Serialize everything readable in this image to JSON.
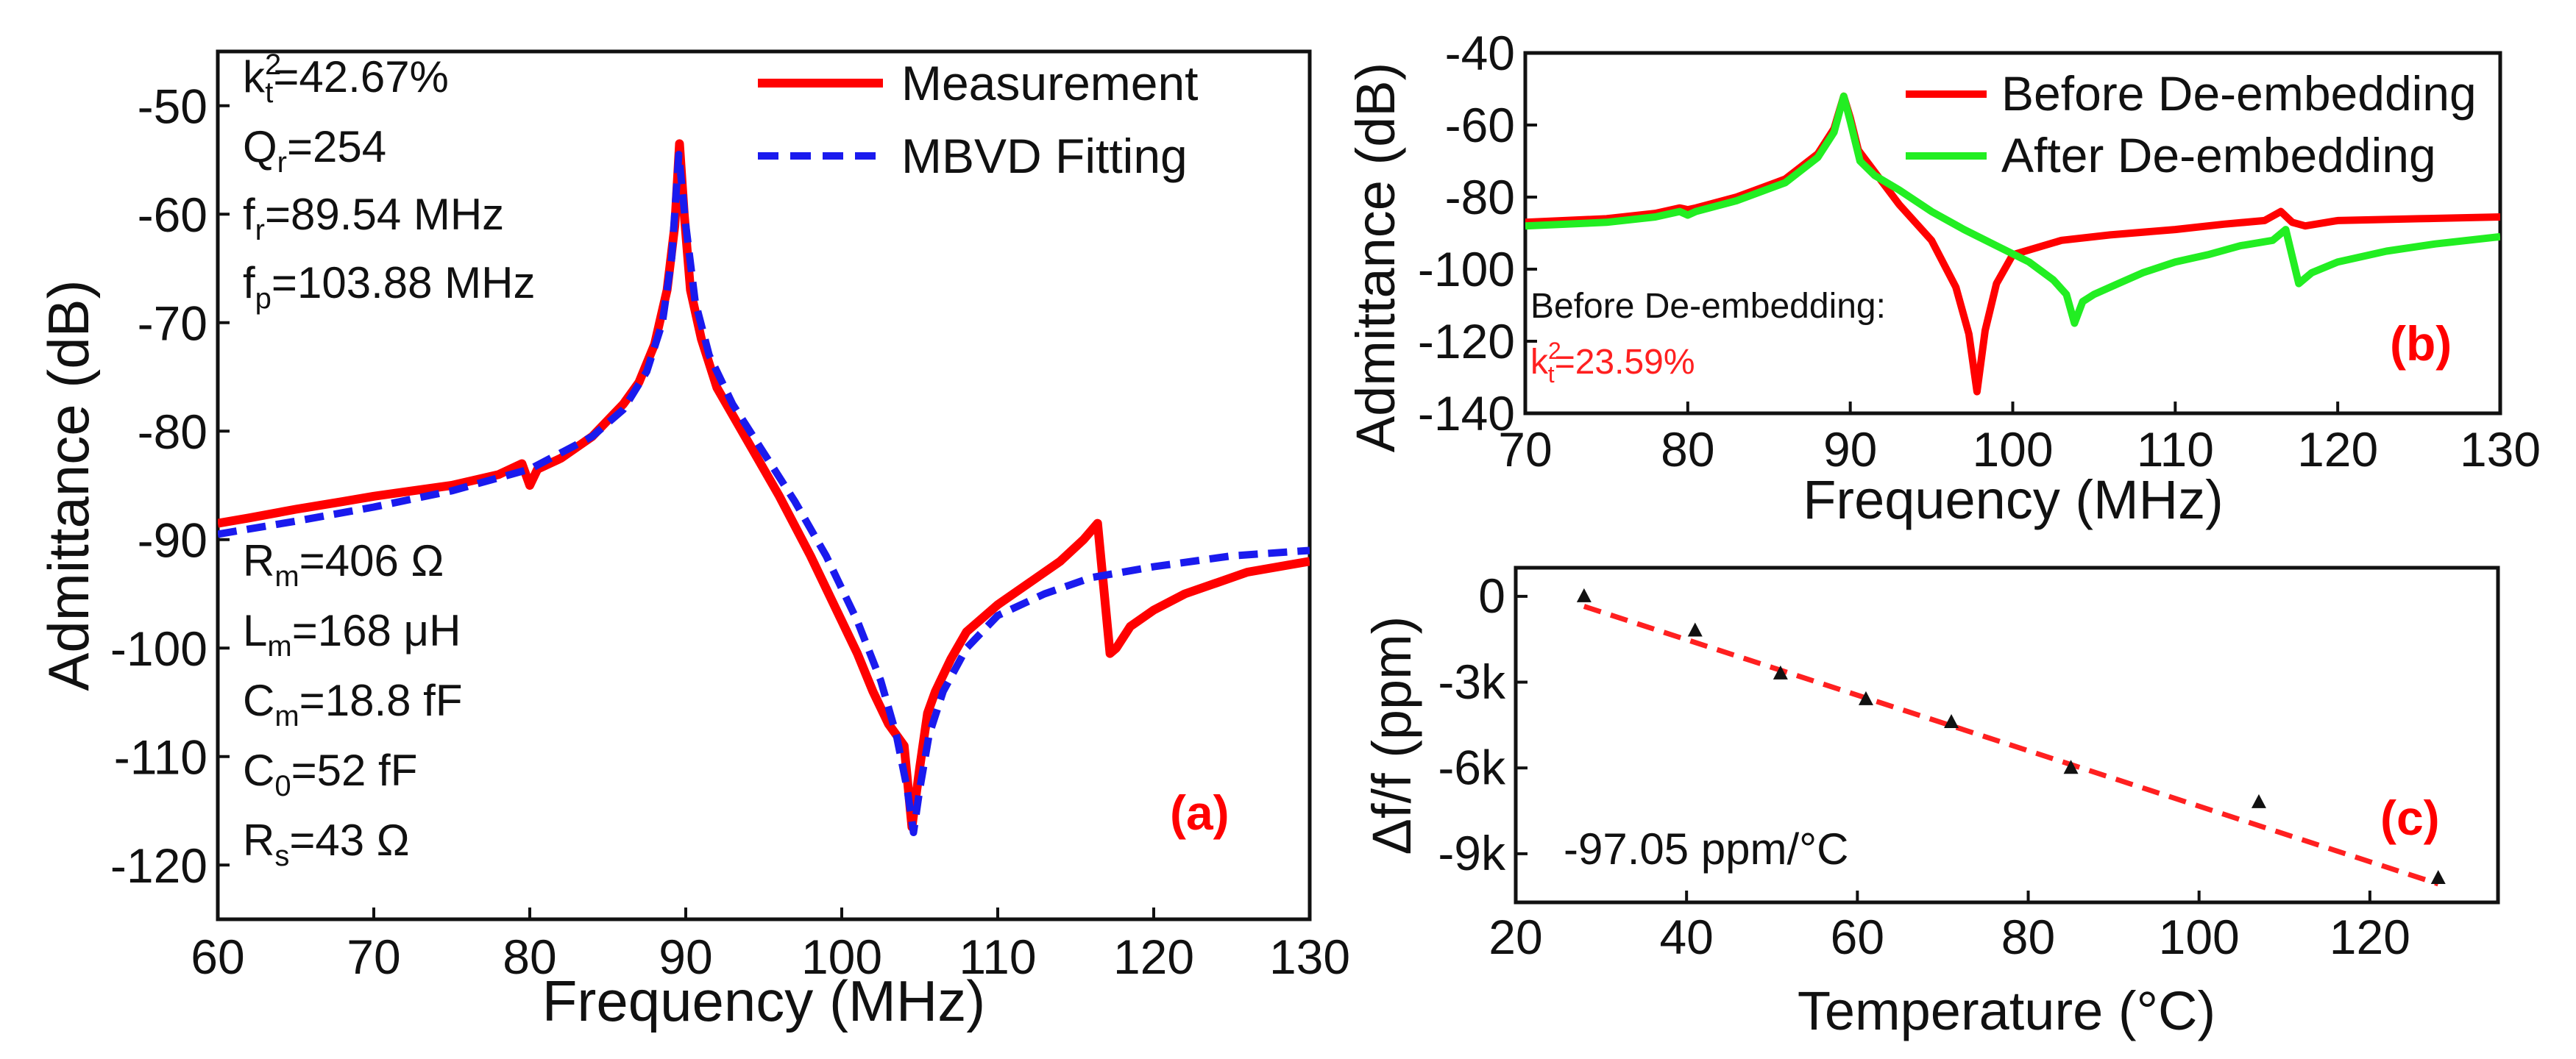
{
  "chart_data": [
    {
      "id": "a",
      "type": "line",
      "panel_label": "(a)",
      "xlabel": "Frequency (MHz)",
      "ylabel": "Admittance (dB)",
      "xlim": [
        60,
        130
      ],
      "ylim": [
        -125,
        -45
      ],
      "xticks": [
        60,
        70,
        80,
        90,
        100,
        110,
        120,
        130
      ],
      "yticks": [
        -120,
        -110,
        -100,
        -90,
        -80,
        -70,
        -60,
        -50
      ],
      "legend_position": "top-right",
      "annotations_top": [
        {
          "main": "k",
          "sub": "t",
          "sup": "2",
          "rest": "=42.67%"
        },
        {
          "main": "Q",
          "sub": "r",
          "rest": "=254"
        },
        {
          "main": "f",
          "sub": "r",
          "rest": "=89.54 MHz"
        },
        {
          "main": "f",
          "sub": "p",
          "rest": "=103.88 MHz"
        }
      ],
      "annotations_bottom": [
        {
          "main": "R",
          "sub": "m",
          "rest": "=406 Ω"
        },
        {
          "main": "L",
          "sub": "m",
          "rest": "=168  μH"
        },
        {
          "main": "C",
          "sub": "m",
          "rest": "=18.8 fF"
        },
        {
          "main": "C",
          "sub": "0",
          "rest": "=52 fF"
        },
        {
          "main": "R",
          "sub": "s",
          "rest": "=43 Ω"
        }
      ],
      "series": [
        {
          "name": "Measurement",
          "color": "#ff0000",
          "style": "solid",
          "x": [
            60,
            62,
            65,
            68,
            70,
            72,
            75,
            78,
            79.5,
            80,
            80.5,
            82,
            84,
            86,
            87,
            88,
            88.8,
            89.3,
            89.6,
            89.9,
            90.3,
            91,
            92,
            94,
            96,
            98,
            100,
            101,
            102,
            103,
            103.5,
            104,
            104.5,
            105,
            105.5,
            106,
            107,
            108,
            110,
            112,
            114,
            115.5,
            116.4,
            117.2,
            117.6,
            118.5,
            120,
            122,
            124,
            126,
            128,
            130
          ],
          "y": [
            -88.5,
            -88,
            -87.2,
            -86.5,
            -86,
            -85.6,
            -85,
            -84,
            -83,
            -85,
            -83.5,
            -82.5,
            -80.5,
            -77.5,
            -75.5,
            -72,
            -67,
            -61,
            -53.5,
            -60,
            -67,
            -71.5,
            -76,
            -81,
            -86,
            -91.5,
            -97.5,
            -100.5,
            -104,
            -107,
            -108,
            -109,
            -116.5,
            -111,
            -106,
            -104,
            -101,
            -98.5,
            -96,
            -94,
            -92,
            -90,
            -88.5,
            -100.5,
            -100,
            -98,
            -96.5,
            -95,
            -94,
            -93,
            -92.5,
            -92
          ]
        },
        {
          "name": "MBVD Fitting",
          "color": "#1a1aee",
          "style": "dashed",
          "x": [
            60,
            65,
            70,
            75,
            80,
            84,
            86,
            87.5,
            88.5,
            89.1,
            89.55,
            90,
            90.6,
            91.5,
            93,
            95,
            97,
            99,
            101,
            102.5,
            103.5,
            104.2,
            104.6,
            105,
            105.6,
            106.5,
            108,
            110,
            113,
            116,
            120,
            125,
            130
          ],
          "y": [
            -89.5,
            -88.3,
            -87,
            -85.5,
            -83.5,
            -80.5,
            -78,
            -74.5,
            -70,
            -64,
            -54.5,
            -61,
            -68,
            -73,
            -77.5,
            -82,
            -86.5,
            -91.5,
            -97.5,
            -103,
            -108,
            -113,
            -117,
            -113,
            -108,
            -104,
            -100,
            -97,
            -95,
            -93.5,
            -92.5,
            -91.5,
            -91
          ]
        }
      ]
    },
    {
      "id": "b",
      "type": "line",
      "panel_label": "(b)",
      "xlabel": "Frequency (MHz)",
      "ylabel": "Admittance (dB)",
      "xlim": [
        70,
        130
      ],
      "ylim": [
        -140,
        -40
      ],
      "xticks": [
        70,
        80,
        90,
        100,
        110,
        120,
        130
      ],
      "yticks": [
        -140,
        -120,
        -100,
        -80,
        -60,
        -40
      ],
      "legend_position": "top-right",
      "annotation_line1": "Before De-embedding:",
      "annotation_line2": {
        "main": "k",
        "sub": "t",
        "sup": "2",
        "rest": "=23.59%",
        "color": "#ff2020"
      },
      "series": [
        {
          "name": "Before De-embedding",
          "color": "#ff0000",
          "style": "solid",
          "x": [
            70,
            75,
            78,
            79.5,
            80,
            80.5,
            83,
            86,
            88,
            89,
            89.6,
            90,
            90.5,
            91.5,
            93,
            95,
            96.5,
            97.3,
            97.8,
            98.3,
            99,
            100,
            103,
            106,
            110,
            113,
            115.5,
            116.5,
            117.2,
            118,
            120,
            125,
            130
          ],
          "y": [
            -87,
            -86,
            -84.5,
            -83,
            -83.5,
            -83,
            -80,
            -75,
            -68,
            -61,
            -52,
            -58,
            -67,
            -73,
            -82,
            -92,
            -105,
            -118,
            -134,
            -117,
            -104,
            -96,
            -92,
            -90.5,
            -89,
            -87.5,
            -86.5,
            -84,
            -87,
            -88,
            -86.5,
            -86,
            -85.5
          ]
        },
        {
          "name": "After De-embedding",
          "color": "#22ee22",
          "style": "solid",
          "x": [
            70,
            75,
            78,
            79.5,
            80,
            80.5,
            83,
            86,
            88,
            89,
            89.6,
            90,
            90.6,
            91.5,
            93,
            95,
            97,
            99,
            101,
            102.5,
            103.3,
            103.8,
            104.3,
            105,
            106.5,
            108,
            110,
            112,
            114,
            116,
            116.8,
            117.6,
            118.4,
            120,
            123,
            126,
            130
          ],
          "y": [
            -88,
            -87,
            -85.5,
            -84,
            -85,
            -84,
            -81,
            -76,
            -69,
            -62,
            -52,
            -59,
            -70,
            -74,
            -78,
            -84,
            -89,
            -93.5,
            -98,
            -103,
            -107,
            -115,
            -109,
            -107,
            -104,
            -101,
            -98,
            -96,
            -93.5,
            -92,
            -89,
            -104,
            -101,
            -98,
            -95,
            -93,
            -91
          ]
        }
      ]
    },
    {
      "id": "c",
      "type": "scatter",
      "panel_label": "(c)",
      "xlabel": "Temperature (°C)",
      "ylabel": "Δf/f (ppm)",
      "xlim": [
        20,
        135
      ],
      "ylim": [
        -10700,
        1000
      ],
      "xticks": [
        20,
        40,
        60,
        80,
        100,
        120
      ],
      "yticks": [
        0,
        -3000,
        -6000,
        -9000
      ],
      "ytick_labels": [
        "0",
        "-3k",
        "-6k",
        "-9k"
      ],
      "annotation": "-97.05 ppm/°C",
      "fit_line": {
        "color": "#ff2020",
        "style": "dashed",
        "x": [
          28,
          128
        ],
        "y": [
          -350,
          -10055
        ]
      },
      "points": {
        "marker": "triangle",
        "color": "#111111",
        "x": [
          28,
          41,
          51,
          61,
          71,
          85,
          107,
          128
        ],
        "y": [
          0,
          -1200,
          -2700,
          -3600,
          -4400,
          -6000,
          -7200,
          -9850
        ]
      }
    }
  ],
  "legend_a": {
    "measurement": "Measurement",
    "fitting": "MBVD Fitting"
  },
  "legend_b": {
    "before": "Before De-embedding",
    "after": "After De-embedding"
  }
}
